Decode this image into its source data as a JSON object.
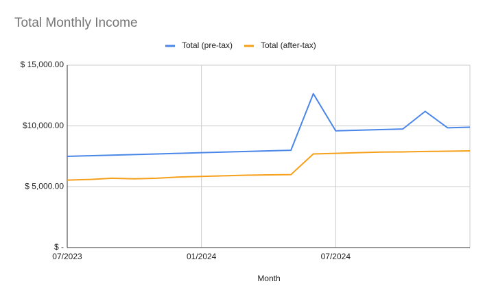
{
  "chart_data": {
    "type": "line",
    "title": "Total Monthly Income",
    "xlabel": "Month",
    "categories": [
      "07/2023",
      null,
      null,
      null,
      null,
      null,
      "01/2024",
      null,
      null,
      null,
      null,
      null,
      "07/2024",
      null,
      null,
      null,
      null,
      null,
      null
    ],
    "series": [
      {
        "name": "Total (pre-tax)",
        "color": "#4a86e8",
        "values": [
          7500,
          7550,
          7600,
          7650,
          7700,
          7750,
          7800,
          7850,
          7900,
          7950,
          8000,
          12650,
          9600,
          9650,
          9700,
          9750,
          11200,
          9850,
          9900
        ]
      },
      {
        "name": "Total (after-tax)",
        "color": "#f6a01a",
        "values": [
          5550,
          5600,
          5700,
          5650,
          5700,
          5800,
          5850,
          5900,
          5950,
          5975,
          6000,
          7700,
          7750,
          7800,
          7850,
          7870,
          7900,
          7925,
          7950
        ]
      }
    ],
    "ylim": [
      0,
      15000
    ],
    "yticks": [
      {
        "value": 0,
        "label": "$ -"
      },
      {
        "value": 5000,
        "label": "$ 5,000.00"
      },
      {
        "value": 10000,
        "label": "$10,000.00"
      },
      {
        "value": 15000,
        "label": "$ 15,000.00"
      }
    ],
    "grid": true,
    "legend": "top"
  }
}
